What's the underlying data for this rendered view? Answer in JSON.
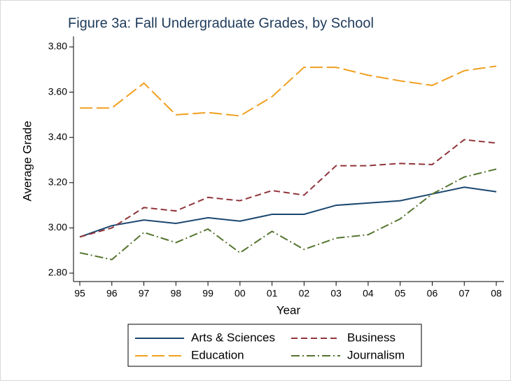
{
  "chart_data": {
    "type": "line",
    "title": "Figure 3a: Fall Undergraduate Grades, by School",
    "x_label": "Year",
    "y_label": "Average Grade",
    "categories": [
      "95",
      "96",
      "97",
      "98",
      "99",
      "00",
      "01",
      "02",
      "03",
      "04",
      "05",
      "06",
      "07",
      "08"
    ],
    "series": [
      {
        "name": "Arts & Sciences",
        "color": "#1a476f",
        "dash": "solid",
        "values": [
          2.96,
          3.01,
          3.035,
          3.02,
          3.045,
          3.03,
          3.06,
          3.06,
          3.1,
          3.11,
          3.12,
          3.15,
          3.18,
          3.16
        ]
      },
      {
        "name": "Business",
        "color": "#90353b",
        "dash": "dash",
        "values": [
          2.96,
          3.0,
          3.09,
          3.075,
          3.135,
          3.12,
          3.165,
          3.145,
          3.275,
          3.275,
          3.285,
          3.28,
          3.39,
          3.375
        ]
      },
      {
        "name": "Education",
        "color": "#f0a020",
        "dash": "longdash",
        "values": [
          3.53,
          3.53,
          3.64,
          3.5,
          3.51,
          3.495,
          3.58,
          3.71,
          3.71,
          3.675,
          3.65,
          3.63,
          3.695,
          3.715
        ]
      },
      {
        "name": "Journalism",
        "color": "#55752f",
        "dash": "dashdot",
        "values": [
          2.89,
          2.86,
          2.98,
          2.935,
          2.995,
          2.89,
          2.985,
          2.905,
          2.955,
          2.97,
          3.04,
          3.15,
          3.225,
          3.26
        ]
      }
    ],
    "ylim": [
      2.8,
      3.8
    ],
    "yticks": [
      {
        "value": 2.8,
        "label": "2.80"
      },
      {
        "value": 3.0,
        "label": "3.00"
      },
      {
        "value": 3.2,
        "label": "3.20"
      },
      {
        "value": 3.4,
        "label": "3.40"
      },
      {
        "value": 3.6,
        "label": "3.60"
      },
      {
        "value": 3.8,
        "label": "3.80"
      }
    ],
    "grid": false,
    "legend": "bottom"
  }
}
